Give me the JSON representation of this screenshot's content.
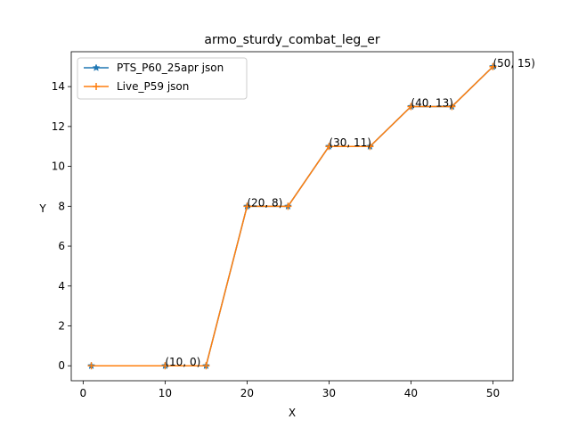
{
  "chart_data": {
    "type": "line",
    "title": "armo_sturdy_combat_leg_er",
    "xlabel": "X",
    "ylabel": "Y",
    "xlim": [
      -1.45,
      52.45
    ],
    "ylim": [
      -0.75,
      15.75
    ],
    "xticks": [
      0,
      10,
      20,
      30,
      40,
      50
    ],
    "yticks": [
      0,
      2,
      4,
      6,
      8,
      10,
      12,
      14
    ],
    "grid": false,
    "legend_position": "upper-left",
    "x": [
      1,
      10,
      15,
      20,
      25,
      30,
      35,
      40,
      45,
      50
    ],
    "series": [
      {
        "name": "PTS_P60_25apr json",
        "color": "#1f77b4",
        "marker": "star",
        "values": [
          0,
          0,
          0,
          8,
          8,
          11,
          11,
          13,
          13,
          15
        ]
      },
      {
        "name": "Live_P59 json",
        "color": "#ff7f0e",
        "marker": "plus",
        "values": [
          0,
          0,
          0,
          8,
          8,
          11,
          11,
          13,
          13,
          15
        ]
      }
    ],
    "annotations": [
      {
        "x": 10,
        "y": 0,
        "text": "(10, 0)"
      },
      {
        "x": 20,
        "y": 8,
        "text": "(20, 8)"
      },
      {
        "x": 30,
        "y": 11,
        "text": "(30, 11)"
      },
      {
        "x": 40,
        "y": 13,
        "text": "(40, 13)"
      },
      {
        "x": 50,
        "y": 15,
        "text": "(50, 15)"
      }
    ]
  }
}
